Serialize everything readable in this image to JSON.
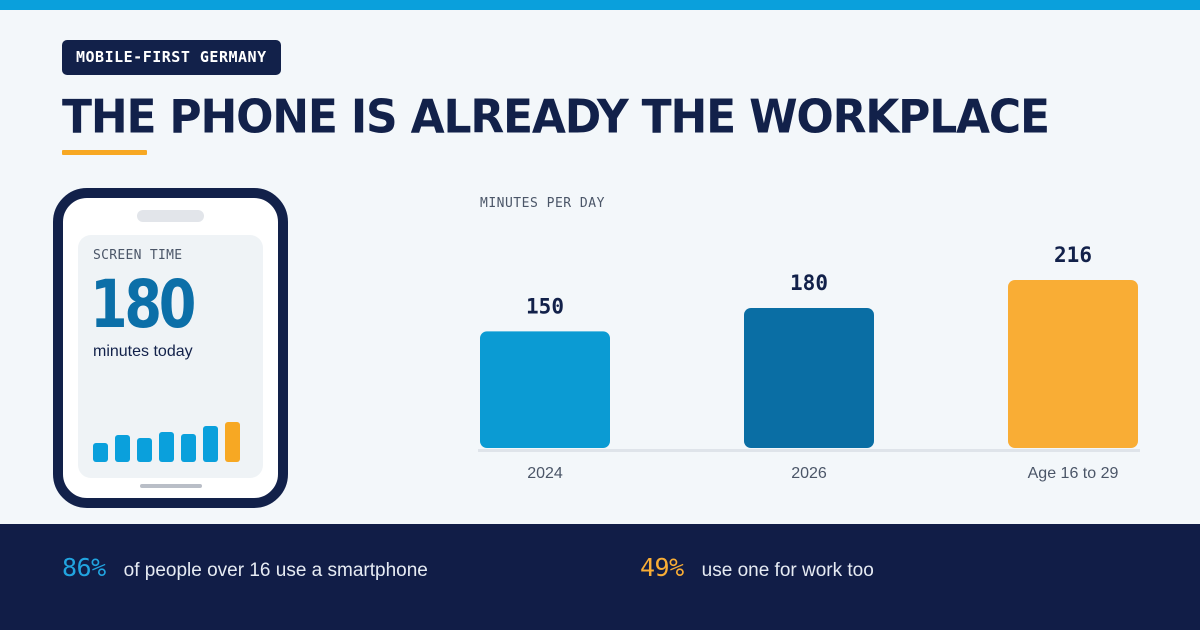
{
  "eyebrow": "MOBILE-FIRST GERMANY",
  "headline": "THE PHONE IS ALREADY THE WORKPLACE",
  "colors": {
    "navy": "#12214a",
    "blue": "#0aa0dc",
    "dark_blue": "#0c6fa8",
    "orange": "#f7a823"
  },
  "phone": {
    "screen_label": "SCREEN TIME",
    "value": "180",
    "caption": "minutes today",
    "mini_bars": [
      0.42,
      0.58,
      0.52,
      0.65,
      0.6,
      0.78,
      0.88
    ]
  },
  "chart_data": {
    "type": "bar",
    "title": "MINUTES PER DAY",
    "categories": [
      "2024",
      "2026",
      "Age 16 to 29"
    ],
    "values": [
      150,
      180,
      216
    ],
    "bar_colors": [
      "#0b9bd3",
      "#0a6ea4",
      "#f9ad35"
    ],
    "ylim": [
      0,
      216
    ],
    "grid": false,
    "legend": "none"
  },
  "footer": {
    "stat1": {
      "value": "86%",
      "text": "of people over 16 use a smartphone",
      "color": "#21a4e0"
    },
    "stat2": {
      "value": "49%",
      "text": "use one for work too",
      "color": "#f9ad35"
    }
  }
}
